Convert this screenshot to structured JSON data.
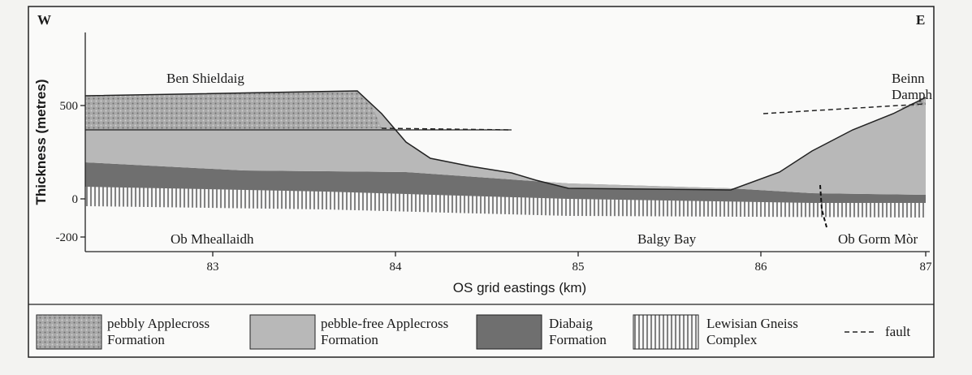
{
  "directions": [
    "W",
    "E"
  ],
  "places": {
    "ben_shieldaig": "Ben Shieldaig",
    "beinn_damph": [
      "Beinn",
      "Damph"
    ],
    "ob_mheallaidh": "Ob Mheallaidh",
    "balgy_bay": "Balgy Bay",
    "ob_gorm_mor": "Ob Gorm Mòr"
  },
  "axes": {
    "y_label": "Thickness (metres)",
    "x_label": "OS grid eastings (km)",
    "yticks": [
      "500",
      "0",
      "-200"
    ],
    "xticks": [
      "83",
      "84",
      "85",
      "86",
      "87"
    ]
  },
  "legend": [
    {
      "lines": [
        "pebbly Applecross",
        "Formation"
      ]
    },
    {
      "lines": [
        "pebble-free Applecross",
        "Formation"
      ]
    },
    {
      "lines": [
        "Diabaig",
        "Formation"
      ]
    },
    {
      "lines": [
        "Lewisian Gneiss",
        "Complex"
      ]
    },
    {
      "lines": [
        "fault"
      ]
    }
  ]
}
